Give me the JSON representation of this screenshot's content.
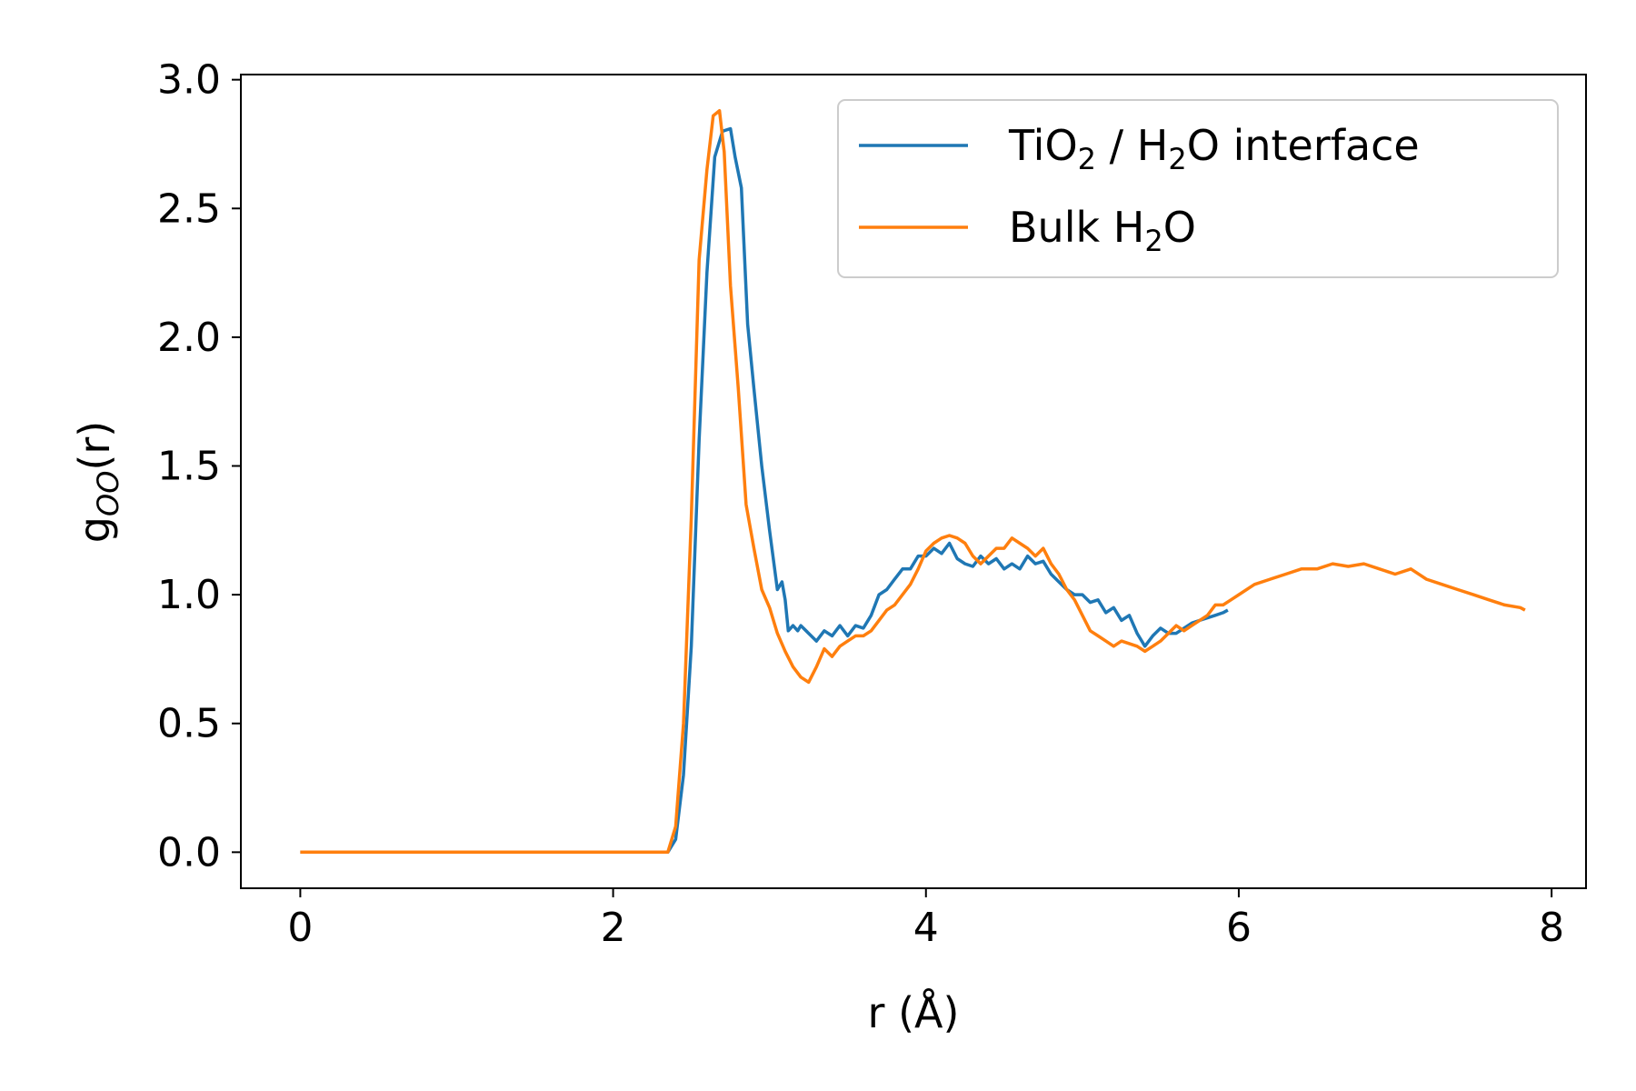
{
  "chart_data": {
    "type": "line",
    "title": "",
    "xlabel": "r (Å)",
    "ylabel_main": "g",
    "ylabel_sub": "OO",
    "ylabel_tail": "(r)",
    "xlim": [
      -0.38,
      8.22
    ],
    "ylim": [
      -0.14,
      3.02
    ],
    "xticks": [
      0,
      2,
      4,
      6,
      8
    ],
    "yticks": [
      0.0,
      0.5,
      1.0,
      1.5,
      2.0,
      2.5,
      3.0
    ],
    "xtick_labels": [
      "0",
      "2",
      "4",
      "6",
      "8"
    ],
    "ytick_labels": [
      "0.0",
      "0.5",
      "1.0",
      "1.5",
      "2.0",
      "2.5",
      "3.0"
    ],
    "grid": false,
    "legend_position": "top-right",
    "series": [
      {
        "name": "TiO₂ / H₂O interface",
        "legend_parts": [
          "TiO",
          "2",
          " / H",
          "2",
          "O interface"
        ],
        "color": "#1f77b4",
        "x": [
          0.0,
          2.35,
          2.4,
          2.45,
          2.5,
          2.55,
          2.6,
          2.65,
          2.7,
          2.75,
          2.78,
          2.82,
          2.86,
          2.9,
          2.95,
          3.0,
          3.05,
          3.08,
          3.1,
          3.12,
          3.15,
          3.18,
          3.2,
          3.25,
          3.3,
          3.35,
          3.4,
          3.45,
          3.5,
          3.55,
          3.6,
          3.65,
          3.7,
          3.75,
          3.8,
          3.85,
          3.9,
          3.95,
          4.0,
          4.05,
          4.1,
          4.15,
          4.2,
          4.25,
          4.3,
          4.35,
          4.4,
          4.45,
          4.5,
          4.55,
          4.6,
          4.65,
          4.7,
          4.75,
          4.8,
          4.85,
          4.9,
          4.95,
          5.0,
          5.05,
          5.1,
          5.15,
          5.2,
          5.25,
          5.3,
          5.35,
          5.4,
          5.45,
          5.5,
          5.55,
          5.6,
          5.65,
          5.7,
          5.75,
          5.8,
          5.85,
          5.9,
          5.93
        ],
        "y": [
          0.0,
          0.0,
          0.05,
          0.3,
          0.8,
          1.6,
          2.25,
          2.7,
          2.8,
          2.81,
          2.7,
          2.58,
          2.05,
          1.8,
          1.5,
          1.25,
          1.02,
          1.05,
          0.98,
          0.86,
          0.88,
          0.86,
          0.88,
          0.85,
          0.82,
          0.86,
          0.84,
          0.88,
          0.84,
          0.88,
          0.87,
          0.92,
          1.0,
          1.02,
          1.06,
          1.1,
          1.1,
          1.15,
          1.15,
          1.18,
          1.16,
          1.2,
          1.14,
          1.12,
          1.11,
          1.15,
          1.12,
          1.14,
          1.1,
          1.12,
          1.1,
          1.15,
          1.12,
          1.13,
          1.08,
          1.05,
          1.02,
          1.0,
          1.0,
          0.97,
          0.98,
          0.93,
          0.95,
          0.9,
          0.92,
          0.85,
          0.8,
          0.84,
          0.87,
          0.85,
          0.85,
          0.87,
          0.89,
          0.9,
          0.91,
          0.92,
          0.93,
          0.94
        ]
      },
      {
        "name": "Bulk H₂O",
        "legend_parts": [
          "Bulk H",
          "2",
          "O",
          "",
          ""
        ],
        "color": "#ff7f0e",
        "x": [
          0.0,
          2.35,
          2.4,
          2.45,
          2.5,
          2.55,
          2.6,
          2.64,
          2.68,
          2.71,
          2.75,
          2.8,
          2.85,
          2.9,
          2.95,
          3.0,
          3.05,
          3.1,
          3.15,
          3.2,
          3.25,
          3.3,
          3.35,
          3.4,
          3.45,
          3.5,
          3.55,
          3.6,
          3.65,
          3.7,
          3.75,
          3.8,
          3.85,
          3.9,
          3.95,
          4.0,
          4.05,
          4.1,
          4.15,
          4.2,
          4.25,
          4.3,
          4.35,
          4.4,
          4.45,
          4.5,
          4.55,
          4.6,
          4.65,
          4.7,
          4.75,
          4.8,
          4.85,
          4.9,
          4.95,
          5.0,
          5.05,
          5.1,
          5.15,
          5.2,
          5.25,
          5.3,
          5.35,
          5.4,
          5.45,
          5.5,
          5.55,
          5.6,
          5.65,
          5.7,
          5.75,
          5.8,
          5.85,
          5.9,
          5.95,
          6.0,
          6.1,
          6.2,
          6.3,
          6.4,
          6.5,
          6.6,
          6.7,
          6.8,
          6.9,
          7.0,
          7.1,
          7.2,
          7.3,
          7.4,
          7.5,
          7.6,
          7.7,
          7.8,
          7.83
        ],
        "y": [
          0.0,
          0.0,
          0.1,
          0.5,
          1.3,
          2.3,
          2.65,
          2.86,
          2.88,
          2.72,
          2.2,
          1.8,
          1.35,
          1.18,
          1.02,
          0.95,
          0.85,
          0.78,
          0.72,
          0.68,
          0.66,
          0.72,
          0.79,
          0.76,
          0.8,
          0.82,
          0.84,
          0.84,
          0.86,
          0.9,
          0.94,
          0.96,
          1.0,
          1.04,
          1.1,
          1.17,
          1.2,
          1.22,
          1.23,
          1.22,
          1.2,
          1.15,
          1.12,
          1.15,
          1.18,
          1.18,
          1.22,
          1.2,
          1.18,
          1.15,
          1.18,
          1.12,
          1.08,
          1.02,
          0.98,
          0.92,
          0.86,
          0.84,
          0.82,
          0.8,
          0.82,
          0.81,
          0.8,
          0.78,
          0.8,
          0.82,
          0.85,
          0.88,
          0.86,
          0.88,
          0.9,
          0.92,
          0.96,
          0.96,
          0.98,
          1.0,
          1.04,
          1.06,
          1.08,
          1.1,
          1.1,
          1.12,
          1.11,
          1.12,
          1.1,
          1.08,
          1.1,
          1.06,
          1.04,
          1.02,
          1.0,
          0.98,
          0.96,
          0.95,
          0.94
        ]
      }
    ]
  }
}
